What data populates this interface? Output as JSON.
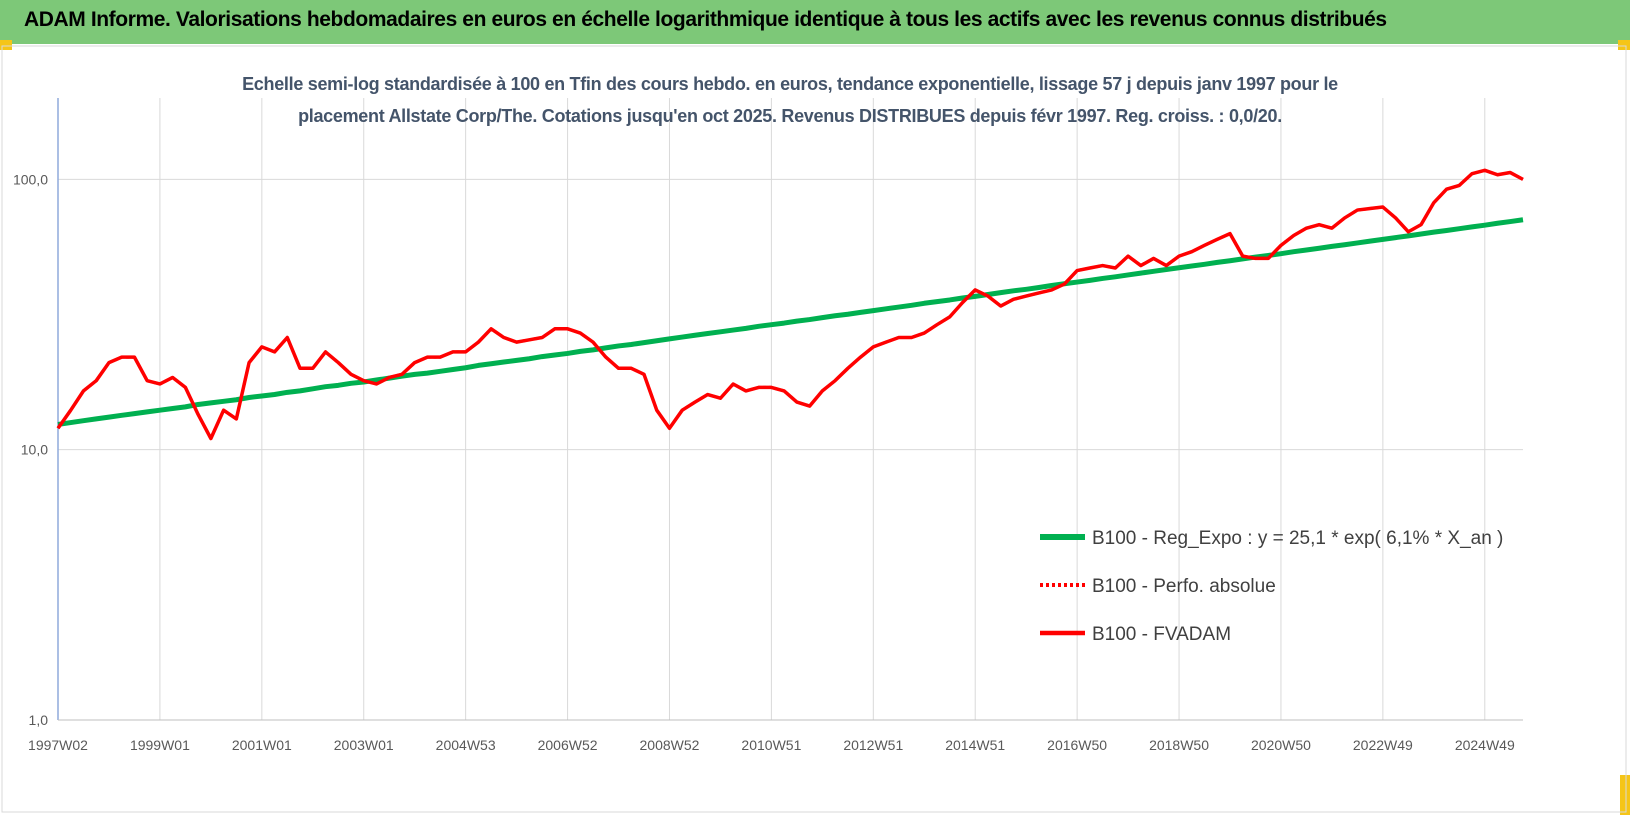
{
  "header": {
    "title": "ADAM Informe. Valorisations hebdomadaires en euros en échelle logarithmique identique à tous les actifs avec les revenus connus distribués"
  },
  "chart_data": {
    "type": "line",
    "title": "Echelle semi-log standardisée à 100 en Tfin des cours hebdo. en euros, tendance exponentielle, lissage 57 j depuis janv 1997 pour le placement Allstate Corp/The. Cotations jusqu'en oct 2025. Revenus DISTRIBUES depuis févr 1997. Reg. croiss. : 0,0/20.",
    "log_scale": true,
    "grid": true,
    "legend": "right",
    "ylim": [
      1,
      200
    ],
    "yticks": [
      {
        "value": 1,
        "label": "1,0"
      },
      {
        "value": 10,
        "label": "10,0"
      },
      {
        "value": 100,
        "label": "100,0"
      }
    ],
    "categories": [
      "1997W02",
      null,
      null,
      null,
      null,
      null,
      null,
      null,
      "1999W01",
      null,
      null,
      null,
      null,
      null,
      null,
      null,
      "2001W01",
      null,
      null,
      null,
      null,
      null,
      null,
      null,
      "2003W01",
      null,
      null,
      null,
      null,
      null,
      null,
      null,
      "2004W53",
      null,
      null,
      null,
      null,
      null,
      null,
      null,
      "2006W52",
      null,
      null,
      null,
      null,
      null,
      null,
      null,
      "2008W52",
      null,
      null,
      null,
      null,
      null,
      null,
      null,
      "2010W51",
      null,
      null,
      null,
      null,
      null,
      null,
      null,
      "2012W51",
      null,
      null,
      null,
      null,
      null,
      null,
      null,
      "2014W51",
      null,
      null,
      null,
      null,
      null,
      null,
      null,
      "2016W50",
      null,
      null,
      null,
      null,
      null,
      null,
      null,
      "2018W50",
      null,
      null,
      null,
      null,
      null,
      null,
      null,
      "2020W50",
      null,
      null,
      null,
      null,
      null,
      null,
      null,
      "2022W49",
      null,
      null,
      null,
      null,
      null,
      null,
      null,
      "2024W49",
      null,
      null,
      null
    ],
    "series": [
      {
        "name": "B100 - Reg_Expo : y = 25,1 * exp( 6,1% *  X_an )",
        "color": "#00b050",
        "style": "solid",
        "width": 5,
        "values": [
          12.4,
          12.6,
          12.8,
          13.0,
          13.2,
          13.4,
          13.6,
          13.8,
          14.0,
          14.2,
          14.4,
          14.7,
          14.9,
          15.1,
          15.3,
          15.6,
          15.8,
          16.0,
          16.3,
          16.5,
          16.8,
          17.1,
          17.3,
          17.6,
          17.8,
          18.1,
          18.4,
          18.7,
          19.0,
          19.2,
          19.5,
          19.8,
          20.1,
          20.5,
          20.8,
          21.1,
          21.4,
          21.7,
          22.1,
          22.4,
          22.7,
          23.1,
          23.4,
          23.8,
          24.2,
          24.5,
          24.9,
          25.3,
          25.7,
          26.1,
          26.5,
          26.9,
          27.3,
          27.7,
          28.1,
          28.6,
          29.0,
          29.4,
          29.9,
          30.3,
          30.8,
          31.3,
          31.7,
          32.2,
          32.7,
          33.2,
          33.7,
          34.2,
          34.8,
          35.3,
          35.8,
          36.4,
          36.9,
          37.5,
          38.1,
          38.7,
          39.2,
          39.8,
          40.5,
          41.1,
          41.7,
          42.3,
          43.0,
          43.6,
          44.3,
          45.0,
          45.7,
          46.4,
          47.1,
          47.8,
          48.5,
          49.3,
          50.0,
          50.8,
          51.6,
          52.3,
          53.1,
          54.0,
          54.8,
          55.6,
          56.5,
          57.3,
          58.2,
          59.1,
          60.0,
          60.9,
          61.8,
          62.8,
          63.8,
          64.7,
          65.7,
          66.7,
          67.7,
          68.8,
          69.8,
          70.9
        ]
      },
      {
        "name": "B100 - Perfo. absolue",
        "color": "#ff0000",
        "style": "dotted",
        "width": 3,
        "values": [
          12,
          14,
          16.5,
          18,
          21,
          22,
          22,
          18,
          17.5,
          18.5,
          17,
          13.5,
          11,
          14,
          13,
          21,
          24,
          23,
          26,
          20,
          20,
          23,
          21,
          19,
          18,
          17.5,
          18.5,
          19,
          21,
          22,
          22,
          23,
          23,
          25,
          28,
          26,
          25,
          25.5,
          26,
          28,
          28,
          27,
          25,
          22,
          20,
          20,
          19,
          14,
          12,
          14,
          15,
          16,
          15.5,
          17.5,
          16.5,
          17,
          17,
          16.5,
          15,
          14.5,
          16.5,
          18,
          20,
          22,
          24,
          25,
          26,
          26,
          27,
          29,
          31,
          35,
          39,
          37,
          34,
          36,
          37,
          38,
          39,
          41,
          46,
          47,
          48,
          47,
          52,
          48,
          51,
          48,
          52,
          54,
          57,
          60,
          63,
          52,
          51,
          51,
          57,
          62,
          66,
          68,
          66,
          72,
          77,
          78,
          79,
          72,
          64,
          68,
          82,
          92,
          95,
          105,
          108,
          104,
          106,
          100
        ]
      },
      {
        "name": "B100 - FVADAM",
        "color": "#ff0000",
        "style": "solid",
        "width": 3.5,
        "values": [
          12,
          14,
          16.5,
          18,
          21,
          22,
          22,
          18,
          17.5,
          18.5,
          17,
          13.5,
          11,
          14,
          13,
          21,
          24,
          23,
          26,
          20,
          20,
          23,
          21,
          19,
          18,
          17.5,
          18.5,
          19,
          21,
          22,
          22,
          23,
          23,
          25,
          28,
          26,
          25,
          25.5,
          26,
          28,
          28,
          27,
          25,
          22,
          20,
          20,
          19,
          14,
          12,
          14,
          15,
          16,
          15.5,
          17.5,
          16.5,
          17,
          17,
          16.5,
          15,
          14.5,
          16.5,
          18,
          20,
          22,
          24,
          25,
          26,
          26,
          27,
          29,
          31,
          35,
          39,
          37,
          34,
          36,
          37,
          38,
          39,
          41,
          46,
          47,
          48,
          47,
          52,
          48,
          51,
          48,
          52,
          54,
          57,
          60,
          63,
          52,
          51,
          51,
          57,
          62,
          66,
          68,
          66,
          72,
          77,
          78,
          79,
          72,
          64,
          68,
          82,
          92,
          95,
          105,
          108,
          104,
          106,
          100
        ]
      }
    ]
  }
}
